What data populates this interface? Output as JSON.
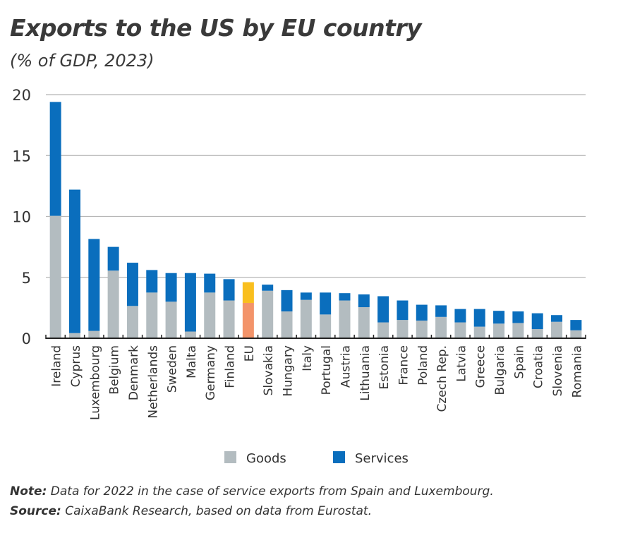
{
  "chart_data": {
    "type": "bar",
    "stacked": true,
    "title": "Exports to the US by EU country",
    "subtitle": "(% of GDP, 2023)",
    "xlabel": "",
    "ylabel": "",
    "ylim": [
      0,
      20
    ],
    "yticks": [
      0,
      5,
      10,
      15,
      20
    ],
    "grid": true,
    "legend": "bottom",
    "categories": [
      "Ireland",
      "Cyprus",
      "Luxembourg",
      "Belgium",
      "Denmark",
      "Netherlands",
      "Sweden",
      "Malta",
      "Germany",
      "Finland",
      "EU",
      "Slovakia",
      "Hungary",
      "Italy",
      "Portugal",
      "Austria",
      "Lithuania",
      "Estonia",
      "France",
      "Poland",
      "Czech Rep.",
      "Latvia",
      "Greece",
      "Bulgaria",
      "Spain",
      "Croatia",
      "Slovenia",
      "Romania"
    ],
    "series": [
      {
        "name": "Goods",
        "color": "#b3bcc0",
        "highlight_color": "#f3946a",
        "values": [
          10.05,
          0.42,
          0.6,
          5.55,
          2.65,
          3.75,
          3.0,
          0.55,
          3.75,
          3.1,
          2.9,
          3.9,
          2.2,
          3.15,
          1.95,
          3.1,
          2.55,
          1.3,
          1.5,
          1.45,
          1.75,
          1.3,
          0.95,
          1.2,
          1.25,
          0.75,
          1.35,
          0.65
        ]
      },
      {
        "name": "Services",
        "color": "#0a6ebd",
        "highlight_color": "#f9bf1e",
        "values": [
          9.35,
          11.78,
          7.55,
          1.95,
          3.55,
          1.85,
          2.35,
          4.8,
          1.55,
          1.75,
          1.7,
          0.5,
          1.75,
          0.6,
          1.8,
          0.6,
          1.05,
          2.15,
          1.6,
          1.3,
          0.95,
          1.1,
          1.45,
          1.05,
          0.95,
          1.3,
          0.55,
          0.85
        ]
      }
    ],
    "highlight_category": "EU"
  },
  "footnotes": {
    "note_label": "Note:",
    "note_text": " Data for 2022 in the case of service exports from Spain and Luxembourg.",
    "source_label": "Source:",
    "source_text": " CaixaBank Research, based on data from Eurostat."
  }
}
